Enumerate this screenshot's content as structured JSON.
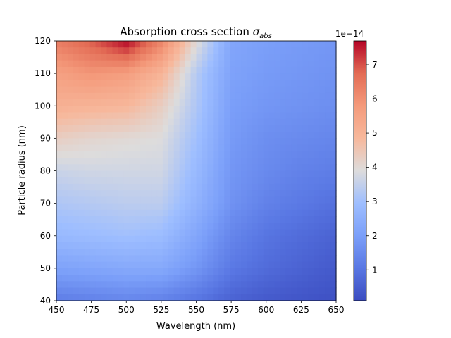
{
  "chart_data": {
    "type": "heatmap",
    "title_main": "Absorption cross section ",
    "title_symbol": "σ",
    "title_subscript": "abs",
    "xlabel": "Wavelength (nm)",
    "ylabel": "Particle radius (nm)",
    "xlim": [
      450,
      650
    ],
    "ylim": [
      40,
      120
    ],
    "xticks": [
      "450",
      "475",
      "500",
      "525",
      "550",
      "575",
      "600",
      "625",
      "650"
    ],
    "yticks": [
      "40",
      "50",
      "60",
      "70",
      "80",
      "90",
      "100",
      "110",
      "120"
    ],
    "colormap": "coolwarm",
    "colorbar": {
      "range": [
        0.1,
        7.7
      ],
      "ticks": [
        "1",
        "2",
        "3",
        "4",
        "5",
        "6",
        "7"
      ],
      "offset_label": "1e−14"
    },
    "x": [
      450,
      475,
      500,
      525,
      550,
      575,
      600,
      625,
      650
    ],
    "y": [
      40,
      50,
      60,
      70,
      80,
      90,
      100,
      110,
      120
    ],
    "z": [
      [
        1.2,
        1.3,
        1.4,
        1.3,
        1.0,
        0.6,
        0.4,
        0.3,
        0.2
      ],
      [
        2.1,
        2.2,
        2.3,
        2.3,
        1.8,
        1.1,
        0.8,
        0.6,
        0.4
      ],
      [
        2.8,
        2.9,
        3.0,
        2.9,
        2.2,
        1.4,
        1.0,
        0.8,
        0.6
      ],
      [
        3.2,
        3.3,
        3.4,
        3.4,
        2.6,
        1.7,
        1.3,
        1.1,
        0.9
      ],
      [
        3.6,
        3.7,
        3.7,
        3.7,
        2.8,
        1.8,
        1.5,
        1.3,
        1.2
      ],
      [
        4.3,
        4.1,
        4.0,
        3.9,
        3.0,
        1.9,
        1.6,
        1.5,
        1.4
      ],
      [
        5.1,
        5.0,
        4.9,
        4.3,
        3.2,
        2.0,
        1.8,
        1.7,
        1.6
      ],
      [
        5.6,
        5.9,
        5.7,
        5.0,
        3.3,
        2.1,
        1.9,
        1.8,
        1.7
      ],
      [
        6.4,
        6.9,
        7.7,
        6.3,
        4.0,
        2.2,
        2.0,
        1.9,
        1.8
      ]
    ]
  }
}
